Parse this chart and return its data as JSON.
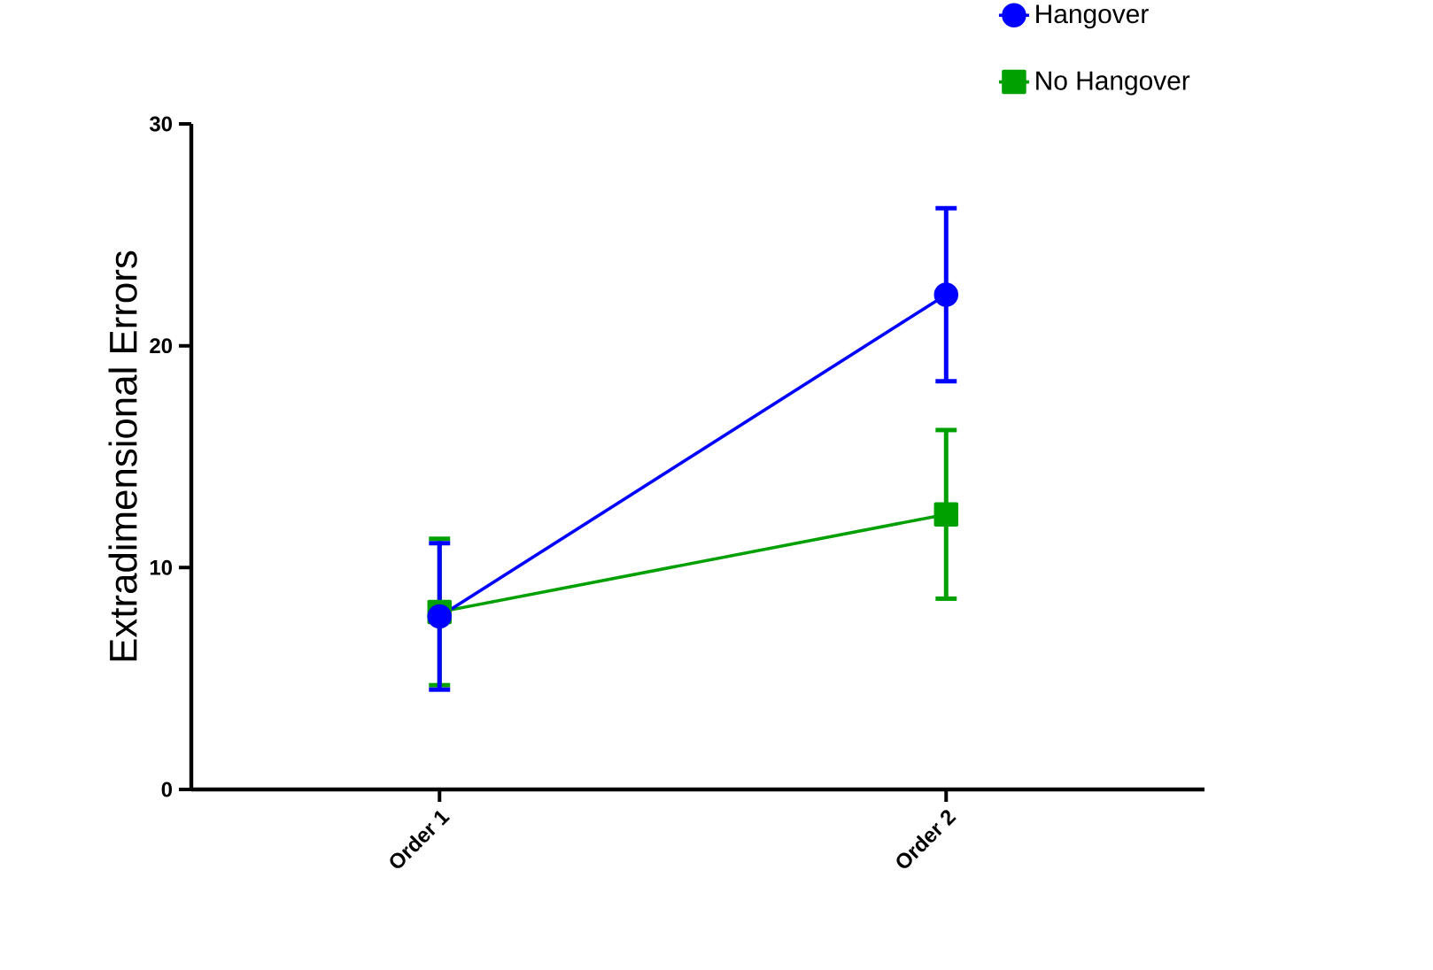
{
  "chart_data": {
    "type": "line",
    "ylabel": "Extradimensional Errors",
    "categories": [
      "Order 1",
      "Order 2"
    ],
    "series": [
      {
        "name": "Hangover",
        "color": "#0000ff",
        "marker": "circle",
        "values": [
          7.8,
          22.3
        ],
        "errors": [
          3.3,
          3.9
        ]
      },
      {
        "name": "No Hangover",
        "color": "#00a000",
        "marker": "square",
        "values": [
          8.0,
          12.4
        ],
        "errors": [
          3.3,
          3.8
        ]
      }
    ],
    "ylim": [
      0,
      30
    ],
    "yticks": [
      0,
      10,
      20,
      30
    ],
    "grid": false,
    "legend": "top right"
  }
}
